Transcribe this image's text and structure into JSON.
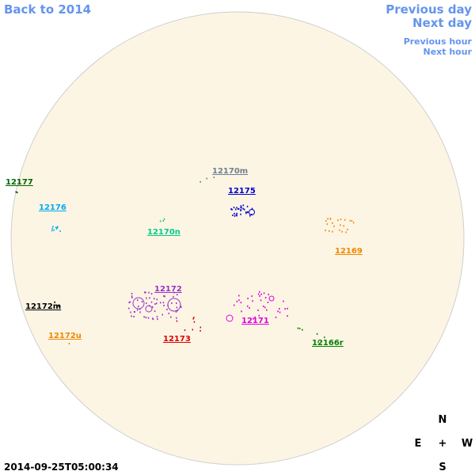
{
  "nav": {
    "back": "Back to 2014",
    "previous_day": "Previous day",
    "next_day": "Next day",
    "previous_hour": "Previous hour",
    "next_hour": "Next hour"
  },
  "regions": [
    {
      "label": "12177",
      "color": "#006400"
    },
    {
      "label": "12176",
      "color": "#00aaee"
    },
    {
      "label": "12170m",
      "color": "#708090"
    },
    {
      "label": "12175",
      "color": "#0000cc"
    },
    {
      "label": "12170n",
      "color": "#00cc88"
    },
    {
      "label": "12169",
      "color": "#ee8800"
    },
    {
      "label": "12172",
      "color": "#9932cc"
    },
    {
      "label": "12172m",
      "color": "#000000"
    },
    {
      "label": "12171",
      "color": "#dd00dd"
    },
    {
      "label": "12172u",
      "color": "#ee8800"
    },
    {
      "label": "12173",
      "color": "#dd0000"
    },
    {
      "label": "12166r",
      "color": "#008000"
    }
  ],
  "compass": {
    "north": "N",
    "east": "E",
    "center": "+",
    "west": "W",
    "south": "S"
  },
  "timestamp": "2014-09-25T05:00:34"
}
